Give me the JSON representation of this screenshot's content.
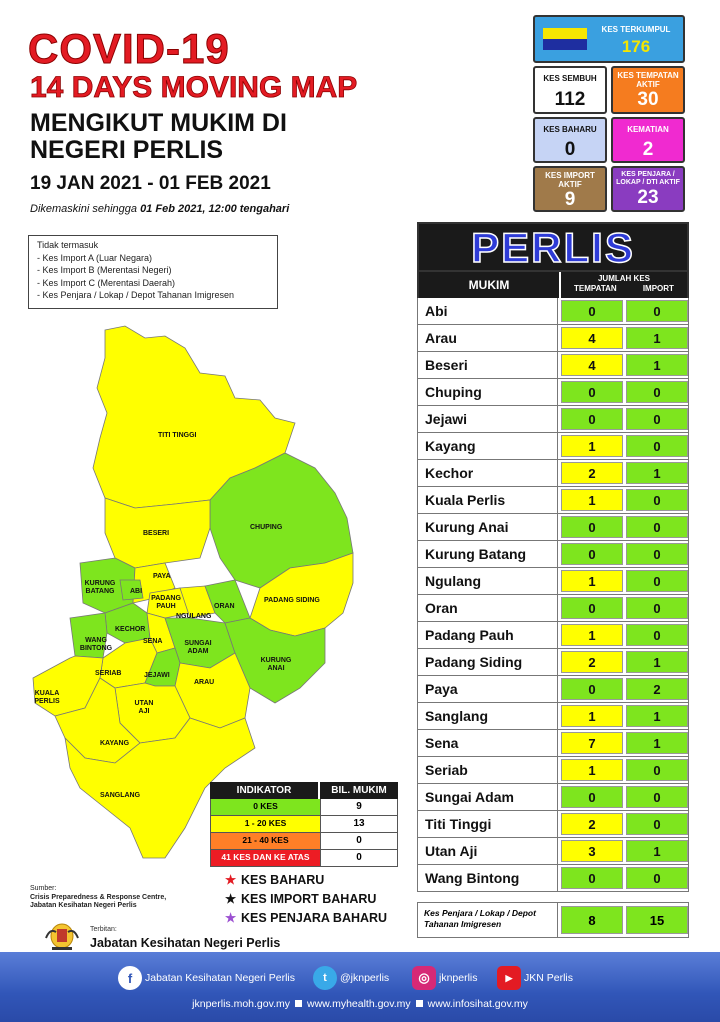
{
  "header": {
    "title_line1": "COVID-19",
    "title_line2": "14 DAYS MOVING MAP",
    "subtitle_line1": "MENGIKUT MUKIM DI",
    "subtitle_line2": "NEGERI PERLIS",
    "date_range": "19 JAN 2021 - 01 FEB 2021",
    "updated_prefix": "Dikemaskini sehingga ",
    "updated_value": "01 Feb 2021, 12:00 tengahari"
  },
  "stats": {
    "kes_terkumpul": {
      "label": "KES TERKUMPUL",
      "value": "176"
    },
    "kes_sembuh": {
      "label": "KES SEMBUH",
      "value": "112"
    },
    "kes_tempatan_aktif": {
      "label": "KES TEMPATAN AKTIF",
      "value": "30"
    },
    "kes_baharu": {
      "label": "KES BAHARU",
      "value": "0"
    },
    "kematian": {
      "label": "KEMATIAN",
      "value": "2"
    },
    "kes_import_aktif": {
      "label": "KES IMPORT AKTIF",
      "value": "9"
    },
    "kes_penjara": {
      "label": "KES PENJARA / LOKAP / DTI AKTIF",
      "value": "23"
    }
  },
  "note": {
    "heading": "Tidak termasuk",
    "items": [
      "- Kes Import A (Luar Negara)",
      "- Kes Import B (Merentasi Negeri)",
      "- Kes Import C (Merentasi Daerah)",
      "- Kes Penjara / Lokap / Depot Tahanan Imigresen"
    ]
  },
  "table": {
    "state": "PERLIS",
    "col_mukim": "MUKIM",
    "col_jumlah": "JUMLAH KES",
    "col_tempatan": "TEMPATAN",
    "col_import": "IMPORT",
    "rows": [
      {
        "name": "Abi",
        "tempatan": "0",
        "import": "0"
      },
      {
        "name": "Arau",
        "tempatan": "4",
        "import": "1"
      },
      {
        "name": "Beseri",
        "tempatan": "4",
        "import": "1"
      },
      {
        "name": "Chuping",
        "tempatan": "0",
        "import": "0"
      },
      {
        "name": "Jejawi",
        "tempatan": "0",
        "import": "0"
      },
      {
        "name": "Kayang",
        "tempatan": "1",
        "import": "0"
      },
      {
        "name": "Kechor",
        "tempatan": "2",
        "import": "1"
      },
      {
        "name": "Kuala Perlis",
        "tempatan": "1",
        "import": "0"
      },
      {
        "name": "Kurung Anai",
        "tempatan": "0",
        "import": "0"
      },
      {
        "name": "Kurung Batang",
        "tempatan": "0",
        "import": "0"
      },
      {
        "name": "Ngulang",
        "tempatan": "1",
        "import": "0"
      },
      {
        "name": "Oran",
        "tempatan": "0",
        "import": "0"
      },
      {
        "name": "Padang Pauh",
        "tempatan": "1",
        "import": "0"
      },
      {
        "name": "Padang Siding",
        "tempatan": "2",
        "import": "1"
      },
      {
        "name": "Paya",
        "tempatan": "0",
        "import": "2"
      },
      {
        "name": "Sanglang",
        "tempatan": "1",
        "import": "1"
      },
      {
        "name": "Sena",
        "tempatan": "7",
        "import": "1"
      },
      {
        "name": "Seriab",
        "tempatan": "1",
        "import": "0"
      },
      {
        "name": "Sungai Adam",
        "tempatan": "0",
        "import": "0"
      },
      {
        "name": "Titi Tinggi",
        "tempatan": "2",
        "import": "0"
      },
      {
        "name": "Utan Aji",
        "tempatan": "3",
        "import": "1"
      },
      {
        "name": "Wang Bintong",
        "tempatan": "0",
        "import": "0"
      }
    ],
    "footer_label": "Kes Penjara / Lokap / Depot Tahanan Imigresen",
    "footer_tempatan": "8",
    "footer_import": "15"
  },
  "indicator": {
    "col_indikator": "INDIKATOR",
    "col_bil": "BIL. MUKIM",
    "rows": [
      {
        "label": "0 KES",
        "count": "9",
        "color": "#7ee51e"
      },
      {
        "label": "1 - 20 KES",
        "count": "13",
        "color": "#ffff00"
      },
      {
        "label": "21 - 40 KES",
        "count": "0",
        "color": "#ff7f27"
      },
      {
        "label": "41 KES DAN KE ATAS",
        "count": "0",
        "color": "#ed1c24"
      }
    ]
  },
  "legend": [
    {
      "label": "KES BAHARU",
      "color": "#e31b23"
    },
    {
      "label": "KES IMPORT BAHARU",
      "color": "#111111"
    },
    {
      "label": "KES PENJARA BAHARU",
      "color": "#9b4fd1"
    }
  ],
  "source": {
    "heading": "Sumber:",
    "line1": "Crisis Preparedness & Response Centre,",
    "line2": "Jabatan Kesihatan Negeri Perlis"
  },
  "publisher": {
    "small": "Terbitan:",
    "big": "Jabatan Kesihatan Negeri Perlis"
  },
  "map_labels": {
    "titi_tinggi": "TITI TINGGI",
    "beseri": "BESERI",
    "chuping": "CHUPING",
    "paya": "PAYA",
    "kurung_batang": "KURUNG BATANG",
    "abi": "ABI",
    "padang_pauh": "PADANG PAUH",
    "padang_siding": "PADANG SIDING",
    "oran": "ORAN",
    "ngulang": "NGULANG",
    "kechor": "KECHOR",
    "wang_bintong": "WANG BINTONG",
    "sena": "SENA",
    "sungai_adam": "SUNGAI ADAM",
    "kurung_anai": "KURUNG ANAI",
    "seriab": "SERIAB",
    "jejawi": "JEJAWI",
    "arau": "ARAU",
    "kuala_perlis": "KUALA PERLIS",
    "utan_aji": "UTAN AJI",
    "kayang": "KAYANG",
    "sanglang": "SANGLANG"
  },
  "footer": {
    "facebook": "Jabatan Kesihatan Negeri Perlis",
    "twitter": "@jknperlis",
    "instagram": "jknperlis",
    "youtube": "JKN Perlis",
    "url1": "jknperlis.moh.gov.my",
    "url2": "www.myhealth.gov.my",
    "url3": "www.infosihat.gov.my"
  }
}
